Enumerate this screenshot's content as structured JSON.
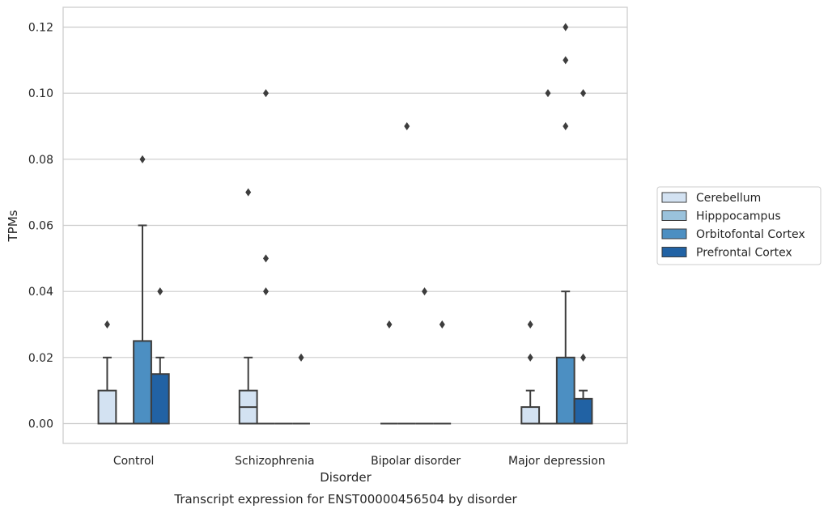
{
  "chart_data": {
    "type": "box",
    "title": "Transcript expression for ENST00000456504 by disorder",
    "xlabel": "Disorder",
    "ylabel": "TPMs",
    "ylim": [
      -0.006,
      0.126
    ],
    "yticks": [
      0.0,
      0.02,
      0.04,
      0.06,
      0.08,
      0.1,
      0.12
    ],
    "ytick_labels": [
      "0.00",
      "0.02",
      "0.04",
      "0.06",
      "0.08",
      "0.10",
      "0.12"
    ],
    "grid": true,
    "legend_position": "right",
    "categories": [
      "Control",
      "Schizophrenia",
      "Bipolar disorder",
      "Major depression"
    ],
    "series": [
      {
        "name": "Cerebellum",
        "color": "#d3e2f2",
        "boxes": [
          {
            "q1": 0,
            "median": 0,
            "q3": 0.01,
            "whisker_low": 0,
            "whisker_high": 0.02,
            "outliers": [
              0.03
            ]
          },
          {
            "q1": 0,
            "median": 0.005,
            "q3": 0.01,
            "whisker_low": 0,
            "whisker_high": 0.02,
            "outliers": [
              0.07
            ]
          },
          {
            "q1": 0,
            "median": 0,
            "q3": 0,
            "whisker_low": 0,
            "whisker_high": 0,
            "outliers": [
              0.03
            ]
          },
          {
            "q1": 0,
            "median": 0,
            "q3": 0.005,
            "whisker_low": 0,
            "whisker_high": 0.01,
            "outliers": [
              0.02,
              0.03
            ]
          }
        ]
      },
      {
        "name": "Hipppocampus",
        "color": "#9ac2dc",
        "boxes": [
          {
            "q1": 0,
            "median": 0,
            "q3": 0,
            "whisker_low": 0,
            "whisker_high": 0,
            "outliers": []
          },
          {
            "q1": 0,
            "median": 0,
            "q3": 0,
            "whisker_low": 0,
            "whisker_high": 0,
            "outliers": [
              0.04,
              0.05,
              0.1
            ]
          },
          {
            "q1": 0,
            "median": 0,
            "q3": 0,
            "whisker_low": 0,
            "whisker_high": 0,
            "outliers": [
              0.09
            ]
          },
          {
            "q1": 0,
            "median": 0,
            "q3": 0,
            "whisker_low": 0,
            "whisker_high": 0,
            "outliers": [
              0.1
            ]
          }
        ]
      },
      {
        "name": "Orbitofontal Cortex",
        "color": "#4c8fc2",
        "boxes": [
          {
            "q1": 0,
            "median": 0,
            "q3": 0.025,
            "whisker_low": 0,
            "whisker_high": 0.06,
            "outliers": [
              0.08
            ]
          },
          {
            "q1": 0,
            "median": 0,
            "q3": 0,
            "whisker_low": 0,
            "whisker_high": 0,
            "outliers": []
          },
          {
            "q1": 0,
            "median": 0,
            "q3": 0,
            "whisker_low": 0,
            "whisker_high": 0,
            "outliers": [
              0.04
            ]
          },
          {
            "q1": 0,
            "median": 0,
            "q3": 0.02,
            "whisker_low": 0,
            "whisker_high": 0.04,
            "outliers": [
              0.09,
              0.11,
              0.12
            ]
          }
        ]
      },
      {
        "name": "Prefrontal Cortex",
        "color": "#2162a4",
        "boxes": [
          {
            "q1": 0,
            "median": 0,
            "q3": 0.015,
            "whisker_low": 0,
            "whisker_high": 0.02,
            "outliers": [
              0.04
            ]
          },
          {
            "q1": 0,
            "median": 0,
            "q3": 0,
            "whisker_low": 0,
            "whisker_high": 0,
            "outliers": [
              0.02
            ]
          },
          {
            "q1": 0,
            "median": 0,
            "q3": 0,
            "whisker_low": 0,
            "whisker_high": 0,
            "outliers": [
              0.03
            ]
          },
          {
            "q1": 0,
            "median": 0,
            "q3": 0.0075,
            "whisker_low": 0,
            "whisker_high": 0.01,
            "outliers": [
              0.02,
              0.1
            ]
          }
        ]
      }
    ]
  }
}
